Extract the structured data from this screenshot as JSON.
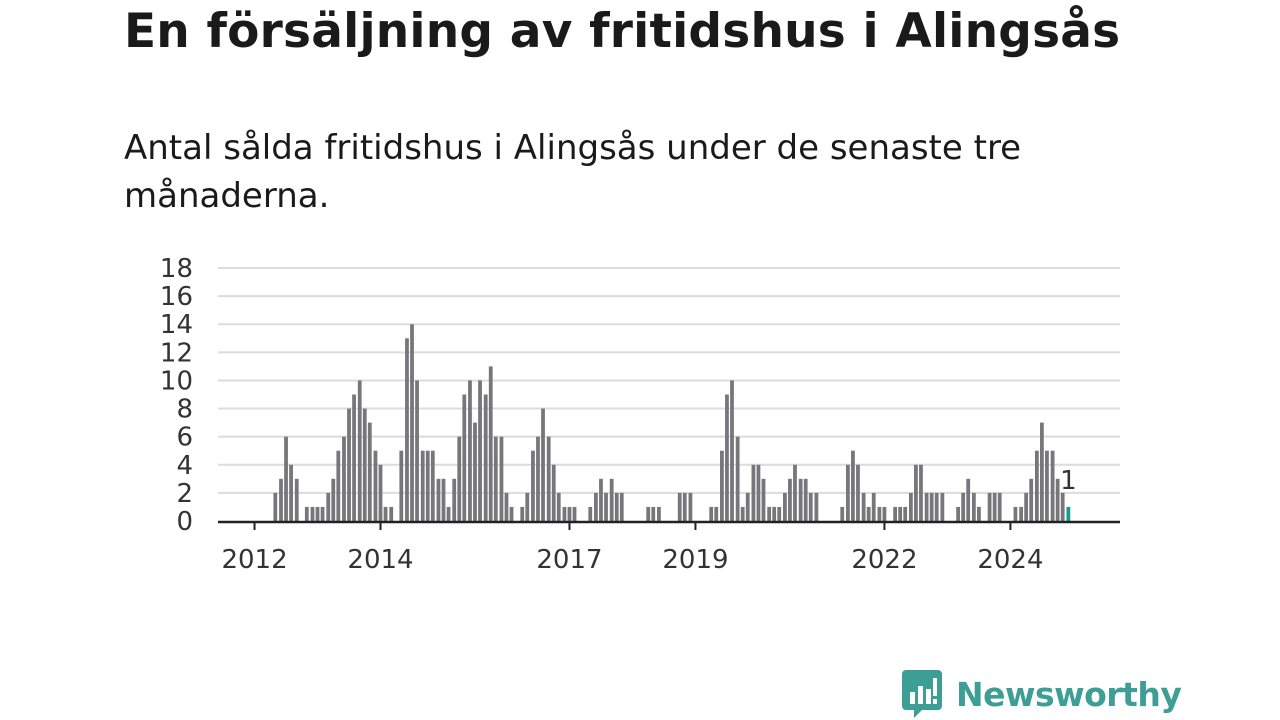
{
  "header": {
    "title": "En försäljning av fritidshus i Alingsås",
    "subtitle": "Antal sålda fritidshus i Alingsås under de senaste tre månaderna."
  },
  "brand": {
    "name": "Newsworthy",
    "logo_icon": "newsworthy-chat-bar-icon"
  },
  "colors": {
    "bar": "#77767b",
    "highlight": "#1a9a8c",
    "grid": "#dcdcdc",
    "brand": "#3d9e95"
  },
  "chart_data": {
    "type": "bar",
    "title": "",
    "xlabel": "",
    "ylabel": "",
    "ylim": [
      0,
      18
    ],
    "y_ticks": [
      0,
      2,
      4,
      6,
      8,
      10,
      12,
      14,
      16,
      18
    ],
    "grid": true,
    "x_tick_labels": [
      {
        "label": "2012",
        "x": 2012.0
      },
      {
        "label": "2014",
        "x": 2014.0
      },
      {
        "label": "2017",
        "x": 2017.0
      },
      {
        "label": "2019",
        "x": 2019.0
      },
      {
        "label": "2022",
        "x": 2022.0
      },
      {
        "label": "2024",
        "x": 2024.0
      }
    ],
    "x_range": [
      2011.42,
      2025.74
    ],
    "series": [
      {
        "points": [
          {
            "x": 2012.33,
            "y": 2
          },
          {
            "x": 2012.42,
            "y": 3
          },
          {
            "x": 2012.5,
            "y": 6
          },
          {
            "x": 2012.58,
            "y": 4
          },
          {
            "x": 2012.67,
            "y": 3
          },
          {
            "x": 2012.83,
            "y": 1
          },
          {
            "x": 2012.92,
            "y": 1
          },
          {
            "x": 2013.0,
            "y": 1
          },
          {
            "x": 2013.08,
            "y": 1
          },
          {
            "x": 2013.17,
            "y": 2
          },
          {
            "x": 2013.25,
            "y": 3
          },
          {
            "x": 2013.33,
            "y": 5
          },
          {
            "x": 2013.42,
            "y": 6
          },
          {
            "x": 2013.5,
            "y": 8
          },
          {
            "x": 2013.58,
            "y": 9
          },
          {
            "x": 2013.67,
            "y": 10
          },
          {
            "x": 2013.75,
            "y": 8
          },
          {
            "x": 2013.83,
            "y": 7
          },
          {
            "x": 2013.92,
            "y": 5
          },
          {
            "x": 2014.0,
            "y": 4
          },
          {
            "x": 2014.08,
            "y": 1
          },
          {
            "x": 2014.17,
            "y": 1
          },
          {
            "x": 2014.33,
            "y": 5
          },
          {
            "x": 2014.42,
            "y": 13
          },
          {
            "x": 2014.5,
            "y": 14
          },
          {
            "x": 2014.58,
            "y": 10
          },
          {
            "x": 2014.67,
            "y": 5
          },
          {
            "x": 2014.75,
            "y": 5
          },
          {
            "x": 2014.83,
            "y": 5
          },
          {
            "x": 2014.92,
            "y": 3
          },
          {
            "x": 2015.0,
            "y": 3
          },
          {
            "x": 2015.08,
            "y": 1
          },
          {
            "x": 2015.17,
            "y": 3
          },
          {
            "x": 2015.25,
            "y": 6
          },
          {
            "x": 2015.33,
            "y": 9
          },
          {
            "x": 2015.42,
            "y": 10
          },
          {
            "x": 2015.5,
            "y": 7
          },
          {
            "x": 2015.58,
            "y": 10
          },
          {
            "x": 2015.67,
            "y": 9
          },
          {
            "x": 2015.75,
            "y": 11
          },
          {
            "x": 2015.83,
            "y": 6
          },
          {
            "x": 2015.92,
            "y": 6
          },
          {
            "x": 2016.0,
            "y": 2
          },
          {
            "x": 2016.08,
            "y": 1
          },
          {
            "x": 2016.25,
            "y": 1
          },
          {
            "x": 2016.33,
            "y": 2
          },
          {
            "x": 2016.42,
            "y": 5
          },
          {
            "x": 2016.5,
            "y": 6
          },
          {
            "x": 2016.58,
            "y": 8
          },
          {
            "x": 2016.67,
            "y": 6
          },
          {
            "x": 2016.75,
            "y": 4
          },
          {
            "x": 2016.83,
            "y": 2
          },
          {
            "x": 2016.92,
            "y": 1
          },
          {
            "x": 2017.0,
            "y": 1
          },
          {
            "x": 2017.08,
            "y": 1
          },
          {
            "x": 2017.33,
            "y": 1
          },
          {
            "x": 2017.42,
            "y": 2
          },
          {
            "x": 2017.5,
            "y": 3
          },
          {
            "x": 2017.58,
            "y": 2
          },
          {
            "x": 2017.67,
            "y": 3
          },
          {
            "x": 2017.75,
            "y": 2
          },
          {
            "x": 2017.83,
            "y": 2
          },
          {
            "x": 2018.25,
            "y": 1
          },
          {
            "x": 2018.33,
            "y": 1
          },
          {
            "x": 2018.42,
            "y": 1
          },
          {
            "x": 2018.75,
            "y": 2
          },
          {
            "x": 2018.83,
            "y": 2
          },
          {
            "x": 2018.92,
            "y": 2
          },
          {
            "x": 2019.25,
            "y": 1
          },
          {
            "x": 2019.33,
            "y": 1
          },
          {
            "x": 2019.42,
            "y": 5
          },
          {
            "x": 2019.5,
            "y": 9
          },
          {
            "x": 2019.58,
            "y": 10
          },
          {
            "x": 2019.67,
            "y": 6
          },
          {
            "x": 2019.75,
            "y": 1
          },
          {
            "x": 2019.83,
            "y": 2
          },
          {
            "x": 2019.92,
            "y": 4
          },
          {
            "x": 2020.0,
            "y": 4
          },
          {
            "x": 2020.08,
            "y": 3
          },
          {
            "x": 2020.17,
            "y": 1
          },
          {
            "x": 2020.25,
            "y": 1
          },
          {
            "x": 2020.33,
            "y": 1
          },
          {
            "x": 2020.42,
            "y": 2
          },
          {
            "x": 2020.5,
            "y": 3
          },
          {
            "x": 2020.58,
            "y": 4
          },
          {
            "x": 2020.67,
            "y": 3
          },
          {
            "x": 2020.75,
            "y": 3
          },
          {
            "x": 2020.83,
            "y": 2
          },
          {
            "x": 2020.92,
            "y": 2
          },
          {
            "x": 2021.33,
            "y": 1
          },
          {
            "x": 2021.42,
            "y": 4
          },
          {
            "x": 2021.5,
            "y": 5
          },
          {
            "x": 2021.58,
            "y": 4
          },
          {
            "x": 2021.67,
            "y": 2
          },
          {
            "x": 2021.75,
            "y": 1
          },
          {
            "x": 2021.83,
            "y": 2
          },
          {
            "x": 2021.92,
            "y": 1
          },
          {
            "x": 2022.0,
            "y": 1
          },
          {
            "x": 2022.17,
            "y": 1
          },
          {
            "x": 2022.25,
            "y": 1
          },
          {
            "x": 2022.33,
            "y": 1
          },
          {
            "x": 2022.42,
            "y": 2
          },
          {
            "x": 2022.5,
            "y": 4
          },
          {
            "x": 2022.58,
            "y": 4
          },
          {
            "x": 2022.67,
            "y": 2
          },
          {
            "x": 2022.75,
            "y": 2
          },
          {
            "x": 2022.83,
            "y": 2
          },
          {
            "x": 2022.92,
            "y": 2
          },
          {
            "x": 2023.17,
            "y": 1
          },
          {
            "x": 2023.25,
            "y": 2
          },
          {
            "x": 2023.33,
            "y": 3
          },
          {
            "x": 2023.42,
            "y": 2
          },
          {
            "x": 2023.5,
            "y": 1
          },
          {
            "x": 2023.67,
            "y": 2
          },
          {
            "x": 2023.75,
            "y": 2
          },
          {
            "x": 2023.83,
            "y": 2
          },
          {
            "x": 2024.08,
            "y": 1
          },
          {
            "x": 2024.17,
            "y": 1
          },
          {
            "x": 2024.25,
            "y": 2
          },
          {
            "x": 2024.33,
            "y": 3
          },
          {
            "x": 2024.42,
            "y": 5
          },
          {
            "x": 2024.5,
            "y": 7
          },
          {
            "x": 2024.58,
            "y": 5
          },
          {
            "x": 2024.67,
            "y": 5
          },
          {
            "x": 2024.75,
            "y": 3
          },
          {
            "x": 2024.83,
            "y": 2
          },
          {
            "x": 2024.92,
            "y": 1,
            "highlight": true
          }
        ]
      }
    ],
    "annotations": [
      {
        "label": "1",
        "x": 2024.92,
        "y": 1
      }
    ]
  }
}
